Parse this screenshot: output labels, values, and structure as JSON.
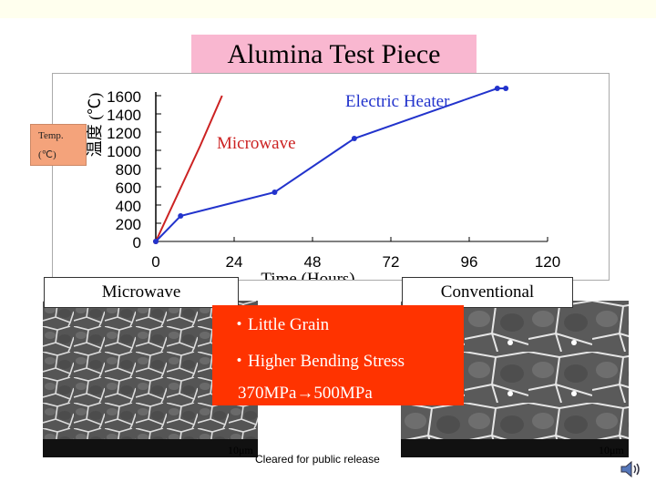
{
  "title": "Alumina Test Piece",
  "side_label": {
    "line1": "Temp.",
    "line2": "(℃)"
  },
  "captions": {
    "left": "Microwave",
    "right": "Conventional"
  },
  "bullets": [
    "・Little Grain",
    "・Higher Bending Stress",
    "370MPa→500MPa"
  ],
  "scale_left": "10μm",
  "scale_right": "10μm",
  "footer": "Cleared for public release",
  "chart_data": {
    "type": "line",
    "title": "",
    "xlabel": "Time (Hours)",
    "ylabel": "温度 (℃)",
    "xlim": [
      0,
      120
    ],
    "ylim": [
      0,
      1600
    ],
    "xticks": [
      "0",
      "24",
      "48",
      "72",
      "96",
      "120"
    ],
    "yticks": [
      "1600",
      "1400",
      "1200",
      "1000",
      "800",
      "600",
      "400",
      "200",
      "0"
    ],
    "series": [
      {
        "name": "Microwave",
        "color": "#cc2222",
        "markers": false,
        "x": [
          0,
          13.6,
          20.3
        ],
        "y": [
          0,
          1050,
          1600
        ]
      },
      {
        "name": "Electric Heater",
        "color": "#2233cc",
        "markers": true,
        "x": [
          0,
          7.6,
          36.4,
          60.8,
          104.6,
          107.2
        ],
        "y": [
          0,
          280,
          540,
          1130,
          1680,
          1680
        ]
      }
    ]
  }
}
